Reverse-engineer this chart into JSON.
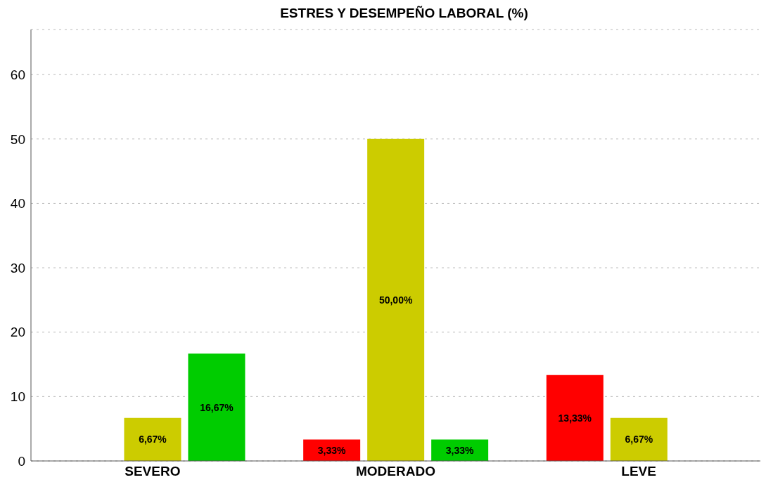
{
  "chart_data": {
    "type": "bar",
    "title": "ESTRES Y DESEMPEÑO LABORAL (%)",
    "categories": [
      "SEVERO",
      "MODERADO",
      "LEVE"
    ],
    "series": [
      {
        "color": "#ff0000",
        "values": [
          null,
          3.33,
          13.33
        ],
        "value_labels": [
          null,
          "3,33%",
          "13,33%"
        ]
      },
      {
        "color": "#cccc00",
        "values": [
          6.67,
          50,
          6.67
        ],
        "value_labels": [
          "6,67%",
          "50,00%",
          "6,67%"
        ]
      },
      {
        "color": "#00cc00",
        "values": [
          16.67,
          3.33,
          null
        ],
        "value_labels": [
          "16,67%",
          "3,33%",
          null
        ]
      }
    ],
    "ylim": [
      0,
      67
    ],
    "yticks": [
      0,
      10,
      20,
      30,
      40,
      50,
      60
    ],
    "grid": "y",
    "legend": false
  }
}
